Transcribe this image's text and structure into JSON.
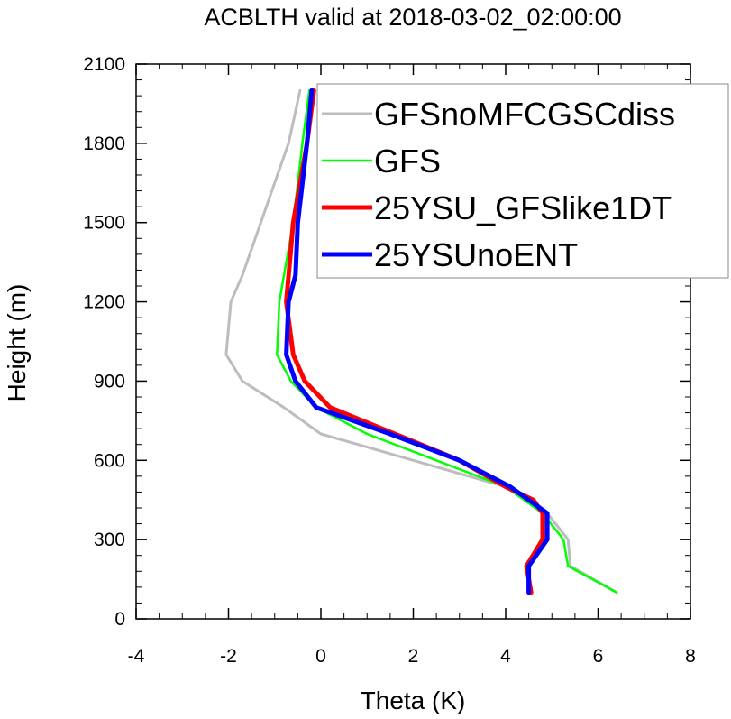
{
  "chart_data": {
    "type": "line",
    "title": "ACBLTH valid at 2018-03-02_02:00:00",
    "xlabel": "Theta (K)",
    "ylabel": "Height (m)",
    "xlim": [
      -4,
      8
    ],
    "ylim": [
      0,
      2100
    ],
    "xticks": [
      "-4",
      "-2",
      "0",
      "2",
      "4",
      "6",
      "8"
    ],
    "yticks": [
      "0",
      "300",
      "600",
      "900",
      "1200",
      "1500",
      "1800",
      "2100"
    ],
    "grid": false,
    "legend_position": "top-right",
    "series": [
      {
        "name": "GFSnoMFCGSCdiss",
        "color": "#bdbdbd",
        "points": [
          [
            6.4,
            100
          ],
          [
            5.4,
            200
          ],
          [
            5.35,
            300
          ],
          [
            4.9,
            400
          ],
          [
            4.0,
            500
          ],
          [
            3.0,
            550
          ],
          [
            2.0,
            600
          ],
          [
            1.0,
            650
          ],
          [
            0.0,
            700
          ],
          [
            -0.8,
            800
          ],
          [
            -1.7,
            900
          ],
          [
            -2.05,
            1000
          ],
          [
            -1.95,
            1200
          ],
          [
            -1.7,
            1300
          ],
          [
            -1.1,
            1600
          ],
          [
            -0.7,
            1800
          ],
          [
            -0.45,
            2000
          ]
        ]
      },
      {
        "name": "GFS",
        "color": "#00ff00",
        "points": [
          [
            6.4,
            100
          ],
          [
            5.35,
            200
          ],
          [
            5.25,
            300
          ],
          [
            4.8,
            400
          ],
          [
            4.0,
            500
          ],
          [
            2.5,
            600
          ],
          [
            1.0,
            700
          ],
          [
            -0.1,
            800
          ],
          [
            -0.65,
            900
          ],
          [
            -0.95,
            1000
          ],
          [
            -0.9,
            1200
          ],
          [
            -0.6,
            1500
          ],
          [
            -0.4,
            1800
          ],
          [
            -0.25,
            2000
          ]
        ]
      },
      {
        "name": "25YSU_GFSlike1DT",
        "color": "#ff0000",
        "points": [
          [
            4.55,
            100
          ],
          [
            4.45,
            200
          ],
          [
            4.8,
            300
          ],
          [
            4.8,
            400
          ],
          [
            4.6,
            450
          ],
          [
            4.0,
            500
          ],
          [
            3.0,
            600
          ],
          [
            1.6,
            700
          ],
          [
            0.2,
            800
          ],
          [
            -0.35,
            900
          ],
          [
            -0.6,
            1000
          ],
          [
            -0.75,
            1200
          ],
          [
            -0.6,
            1500
          ],
          [
            -0.3,
            1800
          ],
          [
            -0.15,
            2000
          ]
        ]
      },
      {
        "name": "25YSUnoENT",
        "color": "#0000ff",
        "points": [
          [
            4.5,
            100
          ],
          [
            4.5,
            200
          ],
          [
            4.9,
            300
          ],
          [
            4.9,
            400
          ],
          [
            4.1,
            500
          ],
          [
            3.0,
            600
          ],
          [
            1.5,
            700
          ],
          [
            -0.1,
            800
          ],
          [
            -0.55,
            900
          ],
          [
            -0.75,
            1000
          ],
          [
            -0.7,
            1200
          ],
          [
            -0.55,
            1300
          ],
          [
            -0.5,
            1500
          ],
          [
            -0.3,
            1800
          ],
          [
            -0.2,
            2000
          ]
        ]
      }
    ]
  }
}
